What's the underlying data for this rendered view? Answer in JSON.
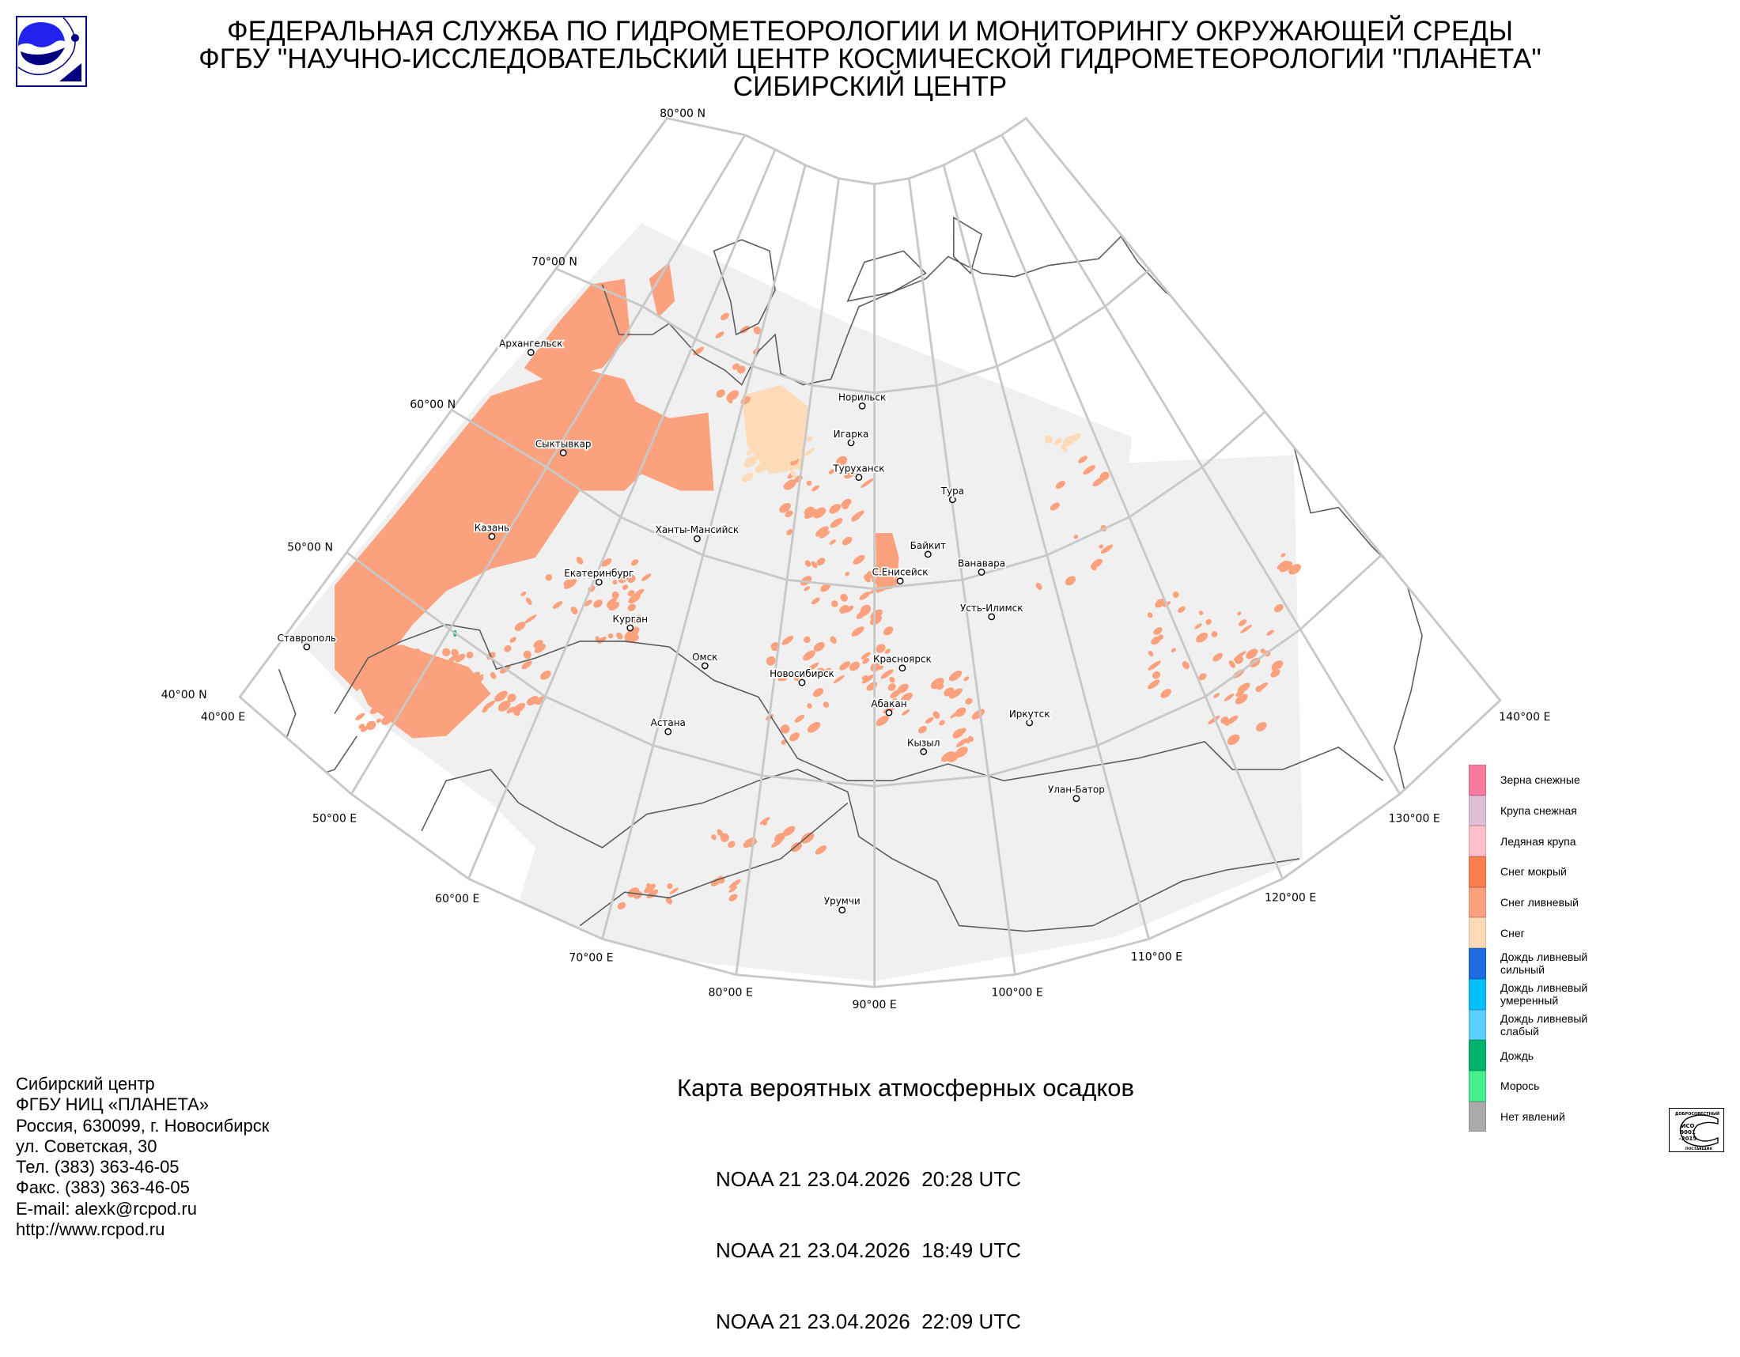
{
  "header": {
    "line1": "ФЕДЕРАЛЬНАЯ СЛУЖБА ПО ГИДРОМЕТЕОРОЛОГИИ И МОНИТОРИНГУ ОКРУЖАЮЩЕЙ СРЕДЫ",
    "line2": "ФГБУ \"НАУЧНО-ИССЛЕДОВАТЕЛЬСКИЙ ЦЕНТР КОСМИЧЕСКОЙ ГИДРОМЕТЕОРОЛОГИИ \"ПЛАНЕТА\"",
    "line3": "СИБИРСКИЙ ЦЕНТР",
    "logo_icon": "planeta-logo"
  },
  "map": {
    "title": "Карта вероятных атмосферных осадков",
    "passes": [
      "NOAA 21 23.04.2026  20:28 UTC",
      "NOAA 21 23.04.2026  18:49 UTC",
      "NOAA 21 23.04.2026  22:09 UTC"
    ],
    "lat_labels": [
      "80°00 N",
      "70°00 N",
      "60°00 N",
      "50°00 N",
      "40°00 N"
    ],
    "lon_labels": [
      "40°00 E",
      "50°00 E",
      "60°00 E",
      "70°00 E",
      "80°00 E",
      "90°00 E",
      "100°00 E",
      "110°00 E",
      "120°00 E",
      "130°00 E",
      "140°00 E"
    ],
    "cities": [
      "Архангельск",
      "Сыктывкар",
      "Казань",
      "Ставрополь",
      "Екатеринбург",
      "Курган",
      "Ханты-Мансийск",
      "Омск",
      "Новосибирск",
      "Астана",
      "Норильск",
      "Игарка",
      "Туруханск",
      "Тура",
      "Байкит",
      "Ванавара",
      "С.Енисейск",
      "Усть-Илимск",
      "Красноярск",
      "Абакан",
      "Кызыл",
      "Иркутск",
      "Улан-Батор",
      "Урумчи"
    ],
    "colors": {
      "coverage": "#f0f0f0",
      "grid": "#c8c8c8",
      "coast": "#5a5a5a",
      "shower_snow": "#fca17d",
      "snow": "#fedbb8",
      "rain": "#00b36b"
    }
  },
  "legend": [
    {
      "label": "Зерна снежные",
      "color": "#f87a9e"
    },
    {
      "label": "Крупа снежная",
      "color": "#e0c0d8"
    },
    {
      "label": "Ледяная крупа",
      "color": "#ffc0cc"
    },
    {
      "label": "Снег мокрый",
      "color": "#fd7f4f"
    },
    {
      "label": "Снег ливневый",
      "color": "#fca17d"
    },
    {
      "label": "Снег",
      "color": "#fedbb8"
    },
    {
      "label": "Дождь ливневый\nсильный",
      "color": "#1e6de0"
    },
    {
      "label": "Дождь ливневый\nумеренный",
      "color": "#00bfff"
    },
    {
      "label": "Дождь ливневый\nслабый",
      "color": "#5ccffc"
    },
    {
      "label": "Дождь",
      "color": "#00b36b"
    },
    {
      "label": "Морось",
      "color": "#46ef8c"
    },
    {
      "label": "Нет явлений",
      "color": "#aaaaaa"
    }
  ],
  "contact": [
    "Сибирский центр",
    "ФГБУ НИЦ «ПЛАНЕТА»",
    "Россия, 630099, г. Новосибирск",
    "ул. Советская, 30",
    "Тел. (383) 363-46-05",
    "Факс. (383) 363-46-05",
    "E-mail: alexk@rcpod.ru",
    "http://www.rcpod.ru"
  ],
  "iso_badge": {
    "top": "ДОБРОСОВЕСТНЫЙ",
    "line1": "ИСО",
    "line2": "9001",
    "line3": "-2015",
    "bottom": "ПОСТАВЩИК"
  }
}
